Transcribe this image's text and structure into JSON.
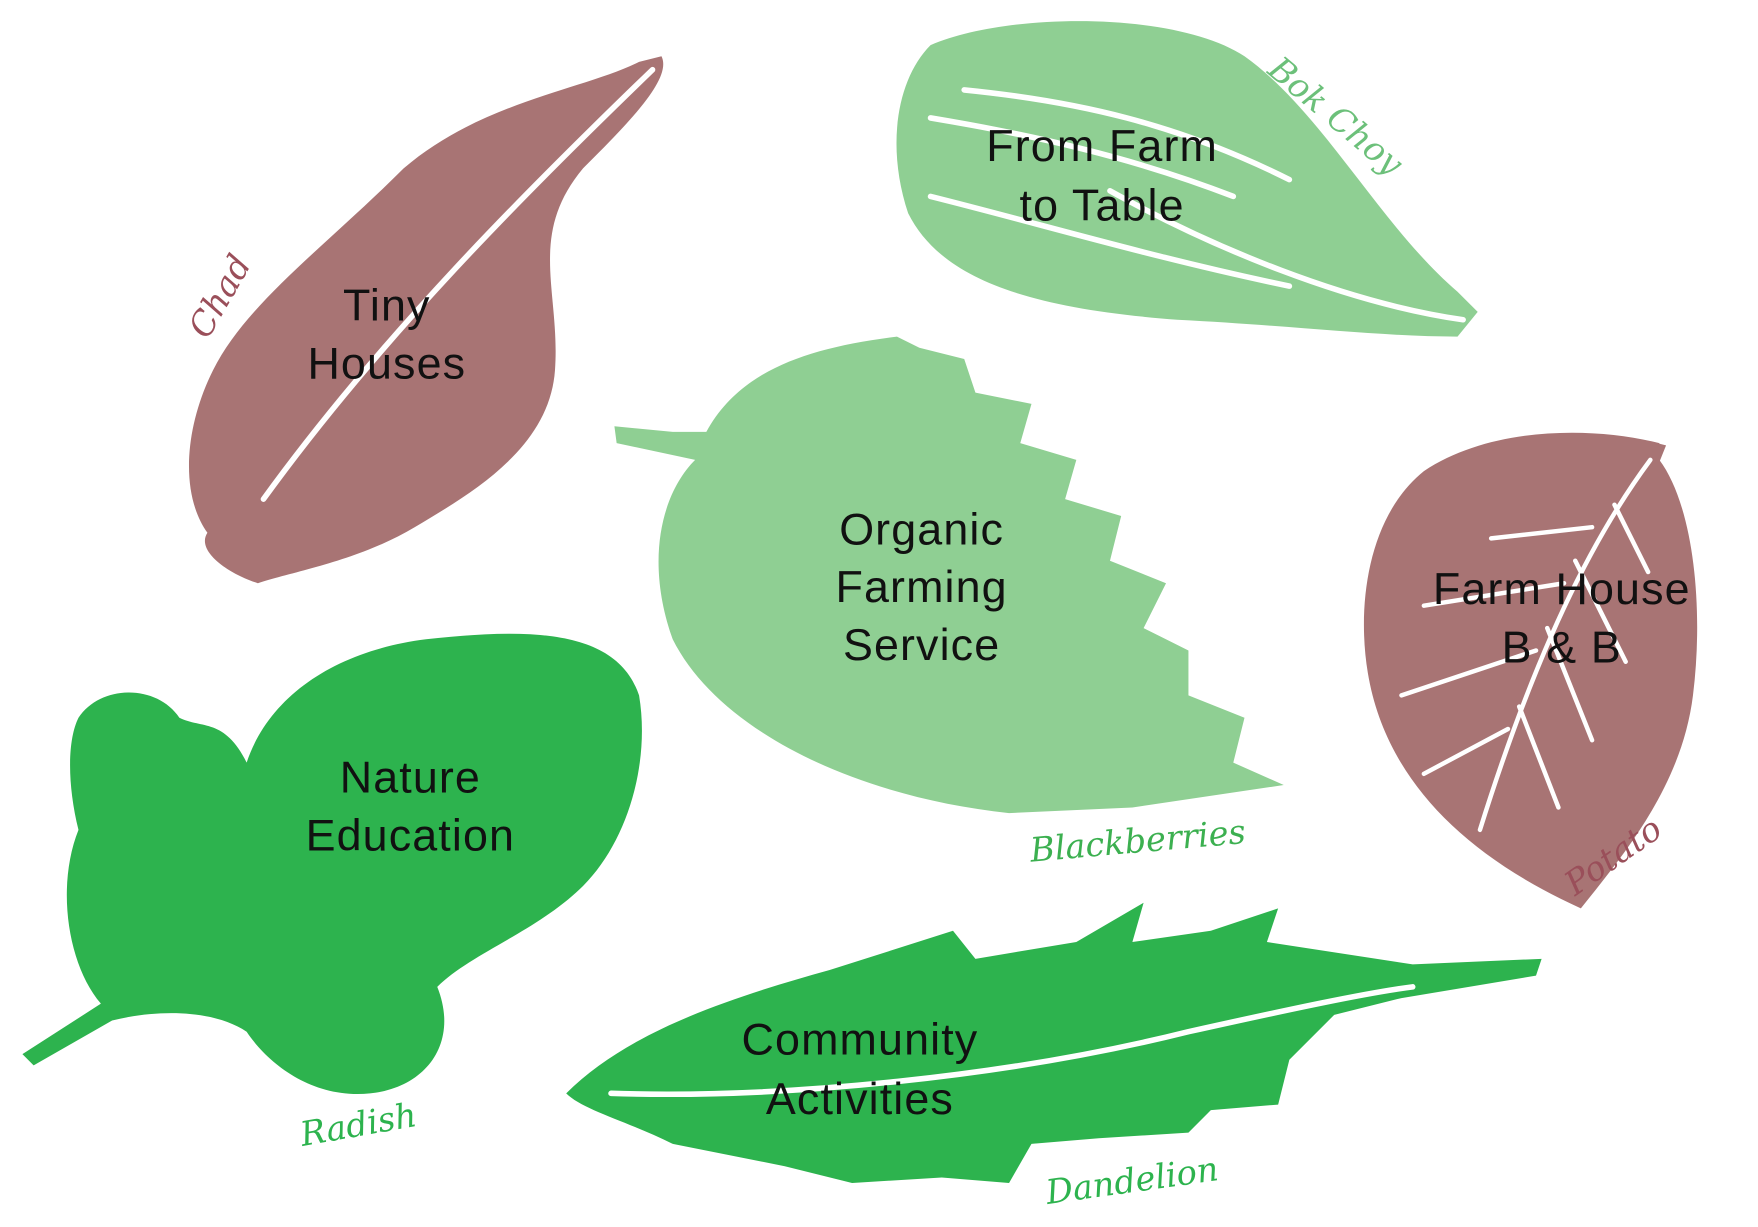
{
  "nodes": [
    {
      "lines": [
        "Tiny",
        "Houses"
      ],
      "plant": "Chad"
    },
    {
      "lines": [
        "From Farm",
        "to Table"
      ],
      "plant": "Bok Choy"
    },
    {
      "lines": [
        "Organic",
        "Farming",
        "Service"
      ],
      "plant": "Blackberries"
    },
    {
      "lines": [
        "Farm House",
        "B & B"
      ],
      "plant": "Potato"
    },
    {
      "lines": [
        "Nature",
        "Education"
      ],
      "plant": "Radish"
    },
    {
      "lines": [
        "Community",
        "Activities"
      ],
      "plant": "Dandelion"
    }
  ]
}
